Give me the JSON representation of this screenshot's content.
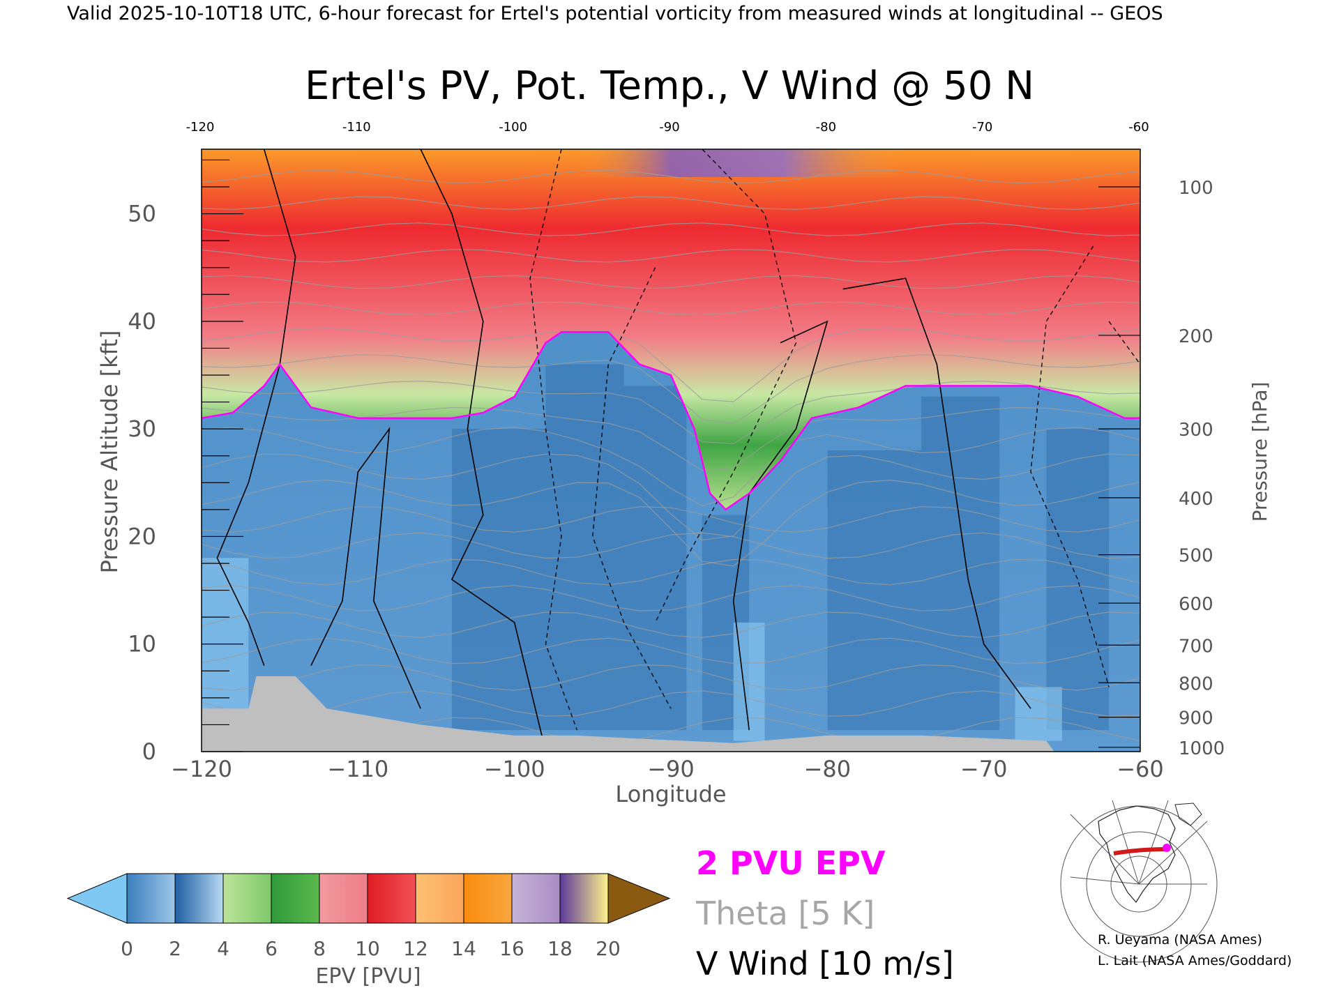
{
  "header_line": "Valid 2025-10-10T18 UTC, 6-hour forecast for Ertel's potential vorticity from measured winds at longitudinal -- GEOS",
  "chart_data": {
    "type": "heatmap",
    "title": "Ertel's PV, Pot. Temp., V Wind @ 50 N",
    "xlabel": "Longitude",
    "ylabel_left": "Pressure Altitude [kft]",
    "ylabel_right": "Pressure [hPa]",
    "xlim": [
      -120,
      -60
    ],
    "ylim": [
      0,
      56
    ],
    "x_ticks_bottom": [
      "−120",
      "−110",
      "−100",
      "−90",
      "−80",
      "−70",
      "−60"
    ],
    "x_ticks_top": [
      "-120",
      "-110",
      "-100",
      "-90",
      "-80",
      "-70",
      "-60"
    ],
    "y_ticks_left": [
      {
        "value": 0,
        "label": "0"
      },
      {
        "value": 10,
        "label": "10"
      },
      {
        "value": 20,
        "label": "20"
      },
      {
        "value": 30,
        "label": "30"
      },
      {
        "value": 40,
        "label": "40"
      },
      {
        "value": 50,
        "label": "50"
      }
    ],
    "y_ticks_right": [
      {
        "kft": 52.5,
        "label": "100"
      },
      {
        "kft": 38.7,
        "label": "200"
      },
      {
        "kft": 30.0,
        "label": "300"
      },
      {
        "kft": 23.6,
        "label": "400"
      },
      {
        "kft": 18.3,
        "label": "500"
      },
      {
        "kft": 13.8,
        "label": "600"
      },
      {
        "kft": 9.9,
        "label": "700"
      },
      {
        "kft": 6.4,
        "label": "800"
      },
      {
        "kft": 3.2,
        "label": "900"
      },
      {
        "kft": 0.4,
        "label": "1000"
      }
    ],
    "tropopause_2pvu_kft": [
      [
        -120,
        31
      ],
      [
        -118,
        31.5
      ],
      [
        -116,
        34
      ],
      [
        -115,
        36
      ],
      [
        -113,
        32
      ],
      [
        -110,
        31
      ],
      [
        -107,
        31
      ],
      [
        -104,
        31
      ],
      [
        -102,
        31.5
      ],
      [
        -100,
        33
      ],
      [
        -98,
        38
      ],
      [
        -97,
        39
      ],
      [
        -94,
        39
      ],
      [
        -92,
        36
      ],
      [
        -90,
        35
      ],
      [
        -88.5,
        30
      ],
      [
        -87.5,
        24
      ],
      [
        -86.5,
        22.5
      ],
      [
        -85,
        24
      ],
      [
        -83,
        27
      ],
      [
        -81,
        31
      ],
      [
        -78,
        32
      ],
      [
        -75,
        34
      ],
      [
        -72,
        34
      ],
      [
        -70,
        34
      ],
      [
        -67,
        34
      ],
      [
        -64,
        33
      ],
      [
        -61,
        31
      ],
      [
        -60,
        31
      ]
    ],
    "colorbar": {
      "label": "EPV [PVU]",
      "ticks": [
        "0",
        "2",
        "4",
        "6",
        "8",
        "10",
        "12",
        "14",
        "16",
        "18",
        "20"
      ],
      "under_color": "#7fc8f4",
      "over_color": "#8a5a10",
      "bins": [
        [
          "#3a7fbf",
          "#9ec6e6"
        ],
        [
          "#1e5fa3",
          "#b8d8f0"
        ],
        [
          "#bde59b",
          "#7ec86a"
        ],
        [
          "#2e9a3a",
          "#5cb84d"
        ],
        [
          "#f29aa0",
          "#ee7d86"
        ],
        [
          "#e01c24",
          "#f15157"
        ],
        [
          "#fdc072",
          "#fca55c"
        ],
        [
          "#fb8c0e",
          "#f7a640"
        ],
        [
          "#c8b4d8",
          "#a88cc4"
        ],
        [
          "#5e3a9b",
          "#9d7cc0"
        ]
      ],
      "bin_18_20": [
        "#fdf28c",
        "#e8c37a"
      ]
    },
    "legend": [
      {
        "label": "2 PVU EPV",
        "color": "#ff00ff"
      },
      {
        "label": "Theta [5 K]",
        "color": "#a6a6a6"
      },
      {
        "label": "V Wind [10 m/s]",
        "color": "#000000"
      }
    ],
    "terrain_color": "#bfbfbf"
  },
  "credits": [
    "R. Ueyama (NASA Ames)",
    "L. Lait (NASA Ames/Goddard)"
  ]
}
